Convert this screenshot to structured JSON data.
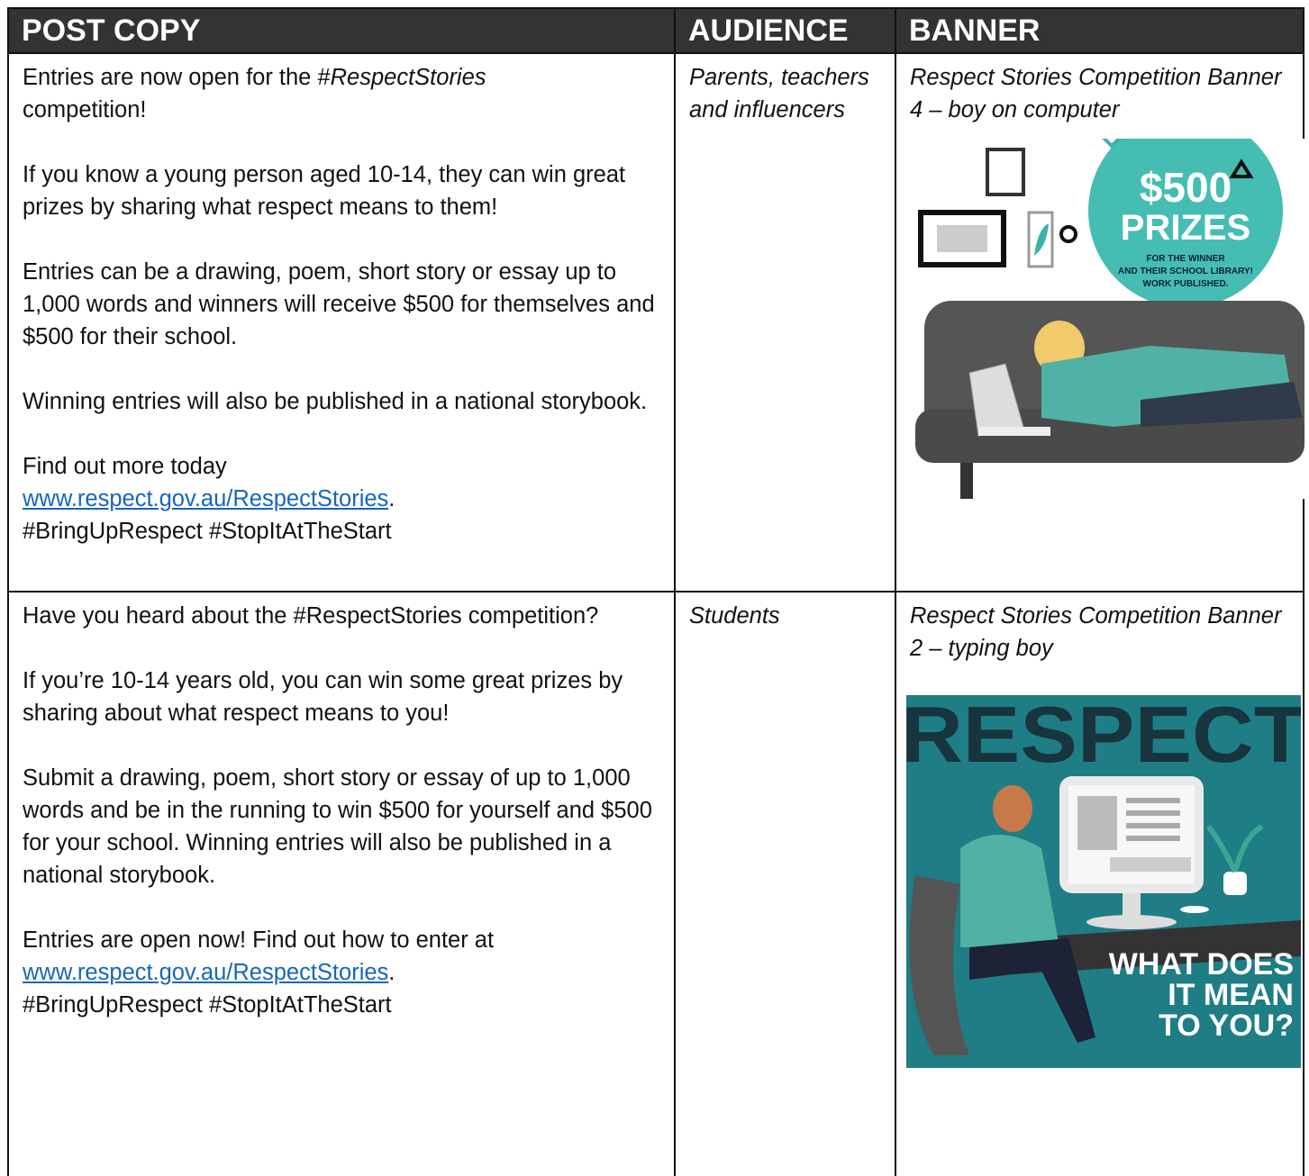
{
  "table": {
    "headers": [
      "POST COPY",
      "AUDIENCE",
      "BANNER"
    ],
    "rows": [
      {
        "post_copy": [
          [
            "Entries are now open for the #",
            "RespectStories",
            "competition!"
          ],
          "If you know a young person aged 10-14, they can win great prizes by sharing what respect means to them!",
          "Entries can be a drawing, poem, short story or essay up to 1,000 words and winners will receive $500 for themselves and $500 for their school.",
          "Winning entries will also be published in a national storybook.",
          [
            "Find out more today",
            "www.respect.gov.au/RespectStories",
            ".",
            "#BringUpRespect #StopItAtTheStart"
          ]
        ],
        "audience": "Parents, teachers and influencers",
        "banner": {
          "caption": "Respect Stories Competition Banner 4 – boy on computer",
          "image_text": [
            "$500",
            "PRIZES",
            "FOR THE WINNER",
            "AND THEIR SCHOOL LIBRARY!",
            "WORK PUBLISHED."
          ]
        }
      },
      {
        "post_copy": [
          "Have you heard about the #RespectStories competition?",
          "If you’re 10-14 years old, you can win some great prizes by sharing about what respect means to you!",
          "Submit a drawing, poem, short story or essay of up to 1,000 words and be in the running to win $500 for yourself and $500 for your school. Winning entries will also be published in a national storybook.",
          [
            "Entries are open now! Find out how to enter at",
            "www.respect.gov.au/RespectStories",
            ".",
            "#BringUpRespect #StopItAtTheStart"
          ]
        ],
        "audience": "Students",
        "banner": {
          "caption": "Respect Stories Competition Banner 2 – typing boy",
          "image_text": [
            "RESPECT",
            "WHAT DOES",
            "IT MEAN",
            "TO YOU?"
          ]
        }
      }
    ]
  }
}
